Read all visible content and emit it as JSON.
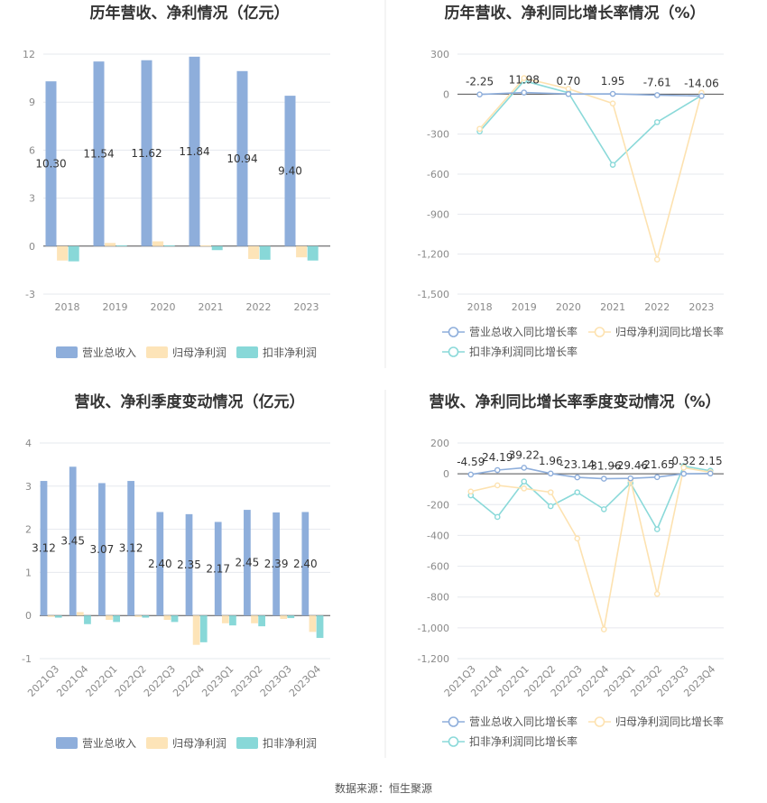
{
  "source": "数据来源：恒生聚源",
  "legend_bars": [
    "营业总收入",
    "归母净利润",
    "扣非净利润"
  ],
  "legend_lines": [
    "营业总收入同比增长率",
    "归母净利润同比增长率",
    "扣非净利润同比增长率"
  ],
  "colors": {
    "revenue": "#8eaedb",
    "netprofit": "#fde4b8",
    "deducted": "#88d8d8",
    "revenue_line": "#8eaedb",
    "netprofit_line": "#fde2b0",
    "deducted_line": "#8ad9d9"
  },
  "chart_data": [
    {
      "type": "bar",
      "title": "历年营收、净利情况（亿元）",
      "categories": [
        "2018",
        "2019",
        "2020",
        "2021",
        "2022",
        "2023"
      ],
      "series": [
        {
          "name": "营业总收入",
          "values": [
            10.3,
            11.54,
            11.62,
            11.84,
            10.94,
            9.4
          ],
          "labels": [
            "10.30",
            "11.54",
            "11.62",
            "11.84",
            "10.94",
            "9.40"
          ]
        },
        {
          "name": "归母净利润",
          "values": [
            -0.9,
            0.2,
            0.3,
            0.05,
            -0.8,
            -0.7
          ]
        },
        {
          "name": "扣非净利润",
          "values": [
            -0.95,
            0.05,
            0.05,
            -0.25,
            -0.85,
            -0.9
          ]
        }
      ],
      "yticks": [
        "12",
        "9",
        "6",
        "3",
        "0",
        "-3"
      ],
      "ylim": [
        -3,
        12
      ]
    },
    {
      "type": "line",
      "title": "历年营收、净利同比增长率情况（%）",
      "categories": [
        "2018",
        "2019",
        "2020",
        "2021",
        "2022",
        "2023"
      ],
      "series": [
        {
          "name": "营业总收入同比增长率",
          "values": [
            -2.25,
            11.98,
            0.7,
            1.95,
            -7.61,
            -14.06
          ],
          "labels": [
            "-2.25",
            "11.98",
            "0.70",
            "1.95",
            "-7.61",
            "-14.06"
          ]
        },
        {
          "name": "归母净利润同比增长率",
          "values": [
            -260,
            120,
            40,
            -70,
            -1240,
            10
          ]
        },
        {
          "name": "扣非净利润同比增长率",
          "values": [
            -280,
            100,
            10,
            -530,
            -210,
            -10
          ]
        }
      ],
      "yticks": [
        "300",
        "0",
        "-300",
        "-600",
        "-900",
        "-1,200",
        "-1,500"
      ],
      "ylim": [
        -1500,
        300
      ]
    },
    {
      "type": "bar",
      "title": "营收、净利季度变动情况（亿元）",
      "categories": [
        "2021Q3",
        "2021Q4",
        "2022Q1",
        "2022Q2",
        "2022Q3",
        "2022Q4",
        "2023Q1",
        "2023Q2",
        "2023Q3",
        "2023Q4"
      ],
      "series": [
        {
          "name": "营业总收入",
          "values": [
            3.12,
            3.45,
            3.07,
            3.12,
            2.4,
            2.35,
            2.17,
            2.45,
            2.39,
            2.4
          ],
          "labels": [
            "3.12",
            "3.45",
            "3.07",
            "3.12",
            "2.40",
            "2.35",
            "2.17",
            "2.45",
            "2.39",
            "2.40"
          ]
        },
        {
          "name": "归母净利润",
          "values": [
            -0.03,
            0.08,
            -0.1,
            -0.03,
            -0.1,
            -0.68,
            -0.18,
            -0.18,
            -0.08,
            -0.38
          ]
        },
        {
          "name": "扣非净利润",
          "values": [
            -0.05,
            -0.2,
            -0.15,
            -0.05,
            -0.15,
            -0.62,
            -0.23,
            -0.25,
            -0.06,
            -0.52
          ]
        }
      ],
      "yticks": [
        "4",
        "3",
        "2",
        "1",
        "0",
        "-1"
      ],
      "ylim": [
        -1,
        4
      ]
    },
    {
      "type": "line",
      "title": "营收、净利同比增长率季度变动情况（%）",
      "categories": [
        "2021Q3",
        "2021Q4",
        "2022Q1",
        "2022Q2",
        "2022Q3",
        "2022Q4",
        "2023Q1",
        "2023Q2",
        "2023Q3",
        "2023Q4"
      ],
      "series": [
        {
          "name": "营业总收入同比增长率",
          "values": [
            -4.59,
            24.19,
            39.22,
            1.96,
            -23.14,
            -31.96,
            -29.46,
            -21.65,
            0.32,
            2.15
          ],
          "labels": [
            "-4.59",
            "24.19",
            "39.22",
            "1.96",
            "-23.14",
            "-31.96",
            "-29.46",
            "-21.65",
            "0.32",
            "2.15"
          ]
        },
        {
          "name": "归母净利润同比增长率",
          "values": [
            -115,
            -75,
            -95,
            -120,
            -420,
            -1010,
            -40,
            -780,
            40,
            10
          ]
        },
        {
          "name": "扣非净利润同比增长率",
          "values": [
            -140,
            -280,
            -50,
            -210,
            -120,
            -230,
            -60,
            -360,
            50,
            20
          ]
        }
      ],
      "yticks": [
        "200",
        "0",
        "-200",
        "-400",
        "-600",
        "-800",
        "-1,000",
        "-1,200"
      ],
      "ylim": [
        -1200,
        200
      ]
    }
  ]
}
